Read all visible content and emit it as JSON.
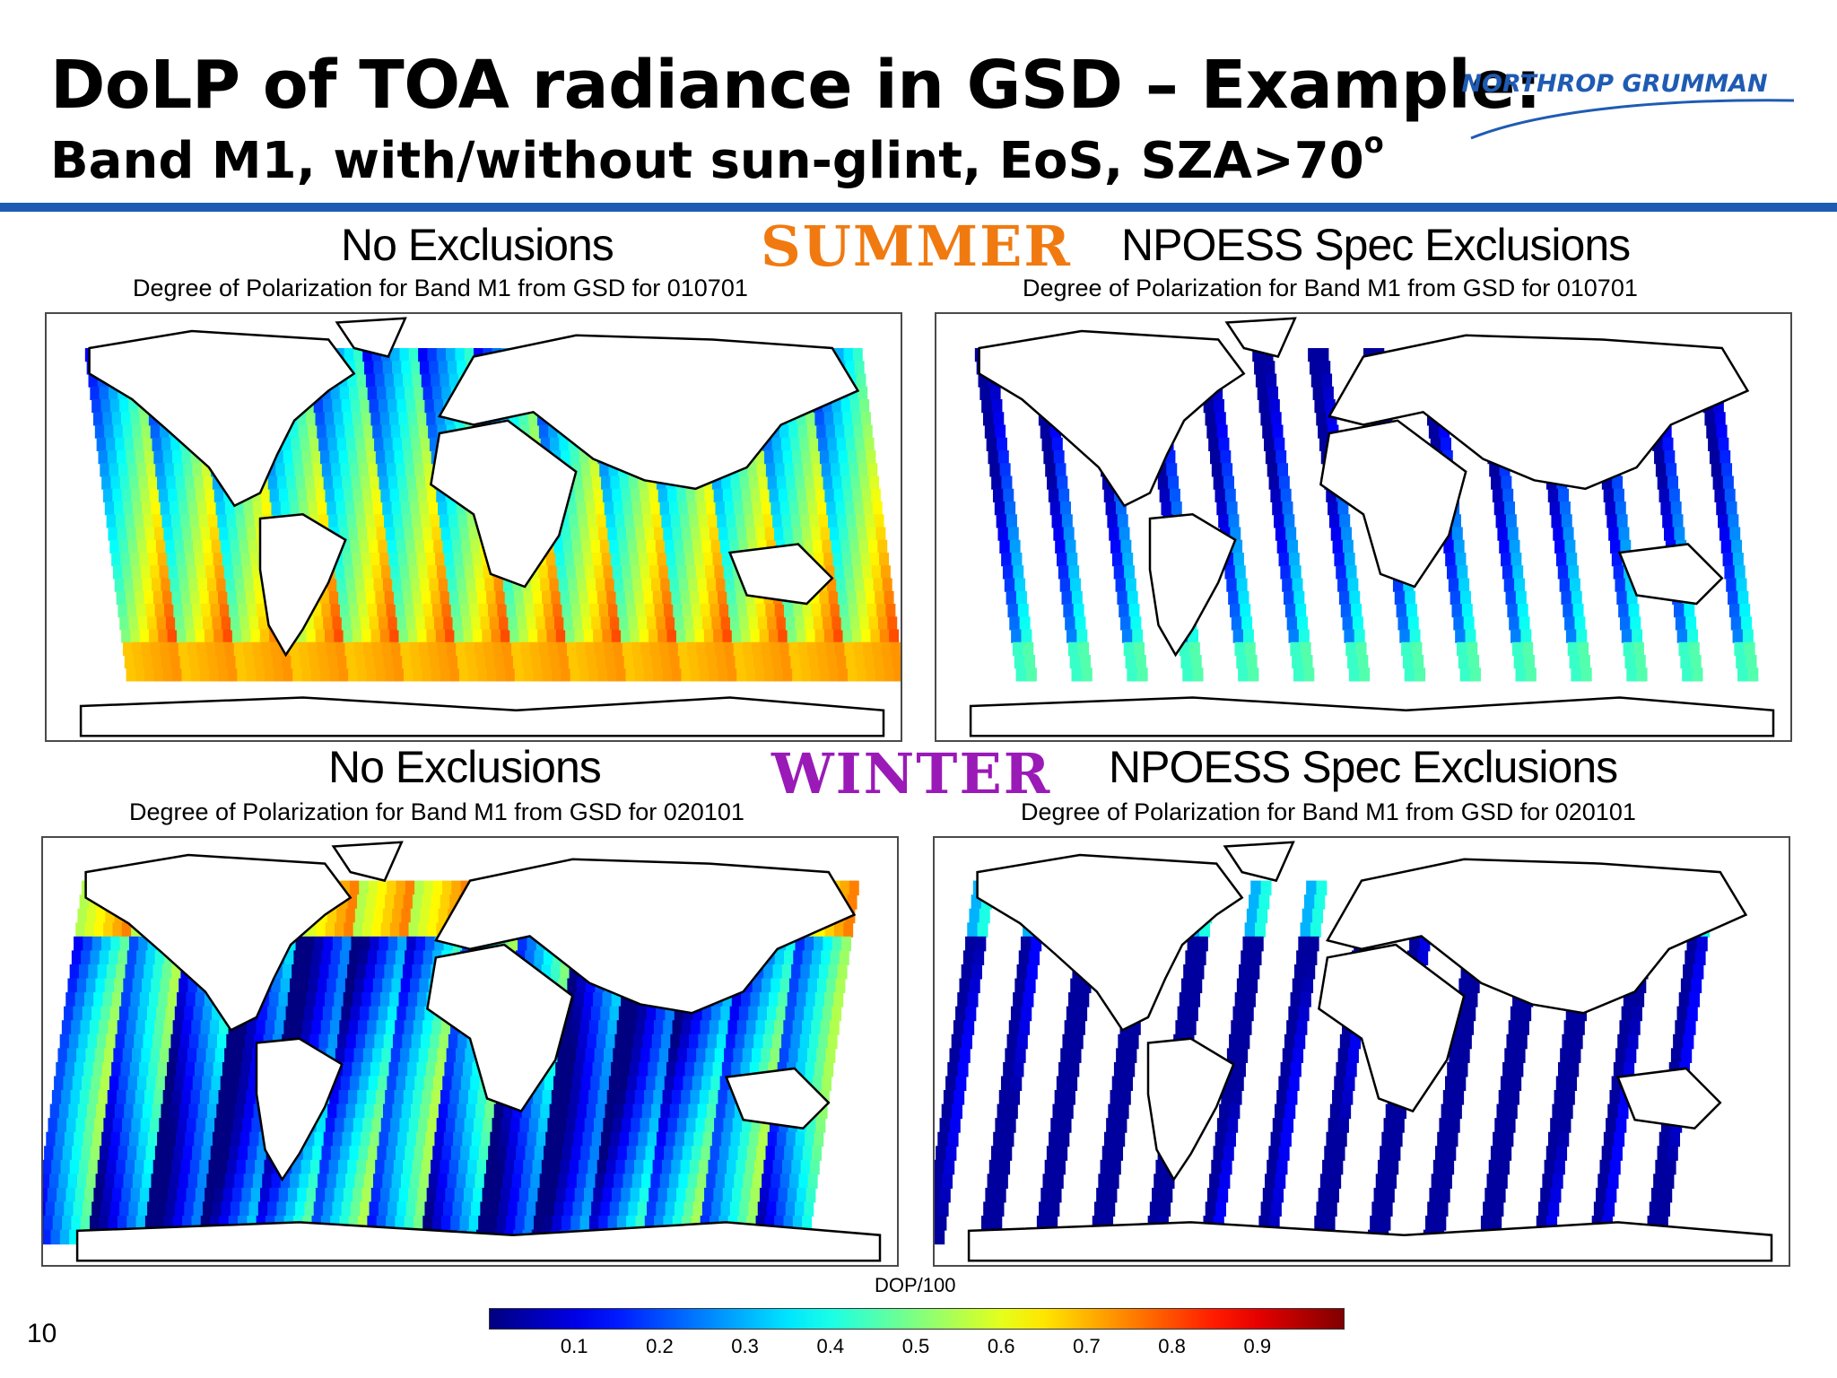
{
  "header": {
    "title_line1": "DoLP of TOA radiance in GSD – Example:",
    "title_line2": "Band M1, with/without sun-glint, EoS, SZA>70",
    "title_degree": "o",
    "logo_text": "NORTHROP GRUMMAN"
  },
  "rows": {
    "summer": {
      "season_label": "SUMMER",
      "season_color": "#f07a10",
      "left_heading": "No Exclusions",
      "right_heading": "NPOESS Spec Exclusions",
      "left_caption": "Degree of Polarization for Band M1 from GSD for 010701",
      "right_caption": "Degree of Polarization for Band M1 from GSD for 010701"
    },
    "winter": {
      "season_label": "WINTER",
      "season_color": "#9a1ab8",
      "left_heading": "No Exclusions",
      "right_heading": "NPOESS Spec Exclusions",
      "left_caption": "Degree of Polarization for Band M1 from GSD for 020101",
      "right_caption": "Degree of Polarization for Band M1 from GSD for 020101"
    }
  },
  "colorbar": {
    "title": "DOP/100",
    "ticks": [
      "0.1",
      "0.2",
      "0.3",
      "0.4",
      "0.5",
      "0.6",
      "0.7",
      "0.8",
      "0.9"
    ],
    "colormap": "jet"
  },
  "footer": {
    "page_number": "10"
  },
  "colors": {
    "rule": "#1f5bb3",
    "logo_blue": "#1f5bb3"
  }
}
